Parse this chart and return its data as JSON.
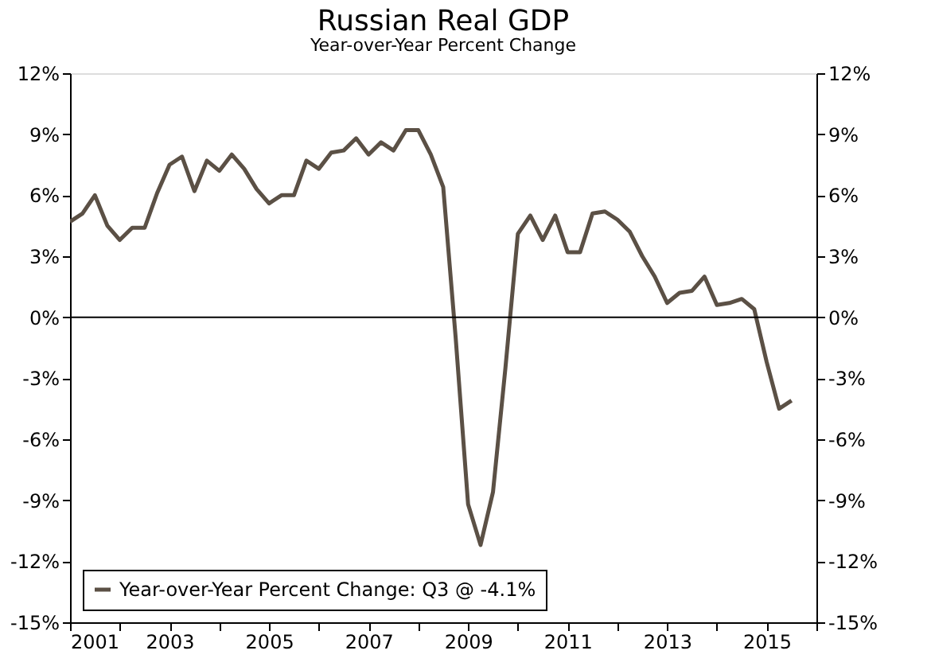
{
  "chart_data": {
    "type": "line",
    "title": "Russian Real GDP",
    "subtitle": "Year-over-Year Percent Change",
    "x": [
      2001,
      2001.25,
      2001.5,
      2001.75,
      2002,
      2002.25,
      2002.5,
      2002.75,
      2003,
      2003.25,
      2003.5,
      2003.75,
      2004,
      2004.25,
      2004.5,
      2004.75,
      2005,
      2005.25,
      2005.5,
      2005.75,
      2006,
      2006.25,
      2006.5,
      2006.75,
      2007,
      2007.25,
      2007.5,
      2007.75,
      2008,
      2008.25,
      2008.5,
      2008.75,
      2009,
      2009.25,
      2009.5,
      2009.75,
      2010,
      2010.25,
      2010.5,
      2010.75,
      2011,
      2011.25,
      2011.5,
      2011.75,
      2012,
      2012.25,
      2012.5,
      2012.75,
      2013,
      2013.25,
      2013.5,
      2013.75,
      2014,
      2014.25,
      2014.5,
      2014.75,
      2015,
      2015.25,
      2015.5
    ],
    "series": [
      {
        "name": "Year-over-Year Percent Change: Q3 @ -4.1%",
        "color": "#5b5045",
        "values": [
          4.7,
          5.1,
          6.0,
          4.5,
          3.8,
          4.4,
          4.4,
          6.1,
          7.5,
          7.9,
          6.2,
          7.7,
          7.2,
          8.0,
          7.3,
          6.3,
          5.6,
          6.0,
          6.0,
          7.7,
          7.3,
          8.1,
          8.2,
          8.8,
          8.0,
          8.6,
          8.2,
          9.2,
          9.2,
          8.0,
          6.4,
          -1.0,
          -9.2,
          -11.2,
          -8.6,
          -2.5,
          4.1,
          5.0,
          3.8,
          5.0,
          3.2,
          3.2,
          5.1,
          5.2,
          4.8,
          4.2,
          3.0,
          2.0,
          0.7,
          1.2,
          1.3,
          2.0,
          0.6,
          0.7,
          0.9,
          0.4,
          -2.2,
          -4.5,
          -4.1
        ]
      }
    ],
    "xlim": [
      2001,
      2016
    ],
    "xticks": [
      2001,
      {
        "value": 2002,
        "label": null
      },
      2003,
      {
        "value": 2004,
        "label": null
      },
      2005,
      {
        "value": 2006,
        "label": null
      },
      2007,
      {
        "value": 2008,
        "label": null
      },
      2009,
      {
        "value": 2010,
        "label": null
      },
      2011,
      {
        "value": 2012,
        "label": null
      },
      2013,
      {
        "value": 2014,
        "label": null
      },
      2015,
      {
        "value": 2016,
        "label": null
      }
    ],
    "ylim": [
      -15,
      12
    ],
    "yticks": [
      {
        "value": -15,
        "label": "-15%"
      },
      {
        "value": -12,
        "label": "-12%"
      },
      {
        "value": -9,
        "label": "-9%"
      },
      {
        "value": -6,
        "label": "-6%"
      },
      {
        "value": -3,
        "label": "-3%"
      },
      {
        "value": 0,
        "label": "0%"
      },
      {
        "value": 3,
        "label": "3%"
      },
      {
        "value": 6,
        "label": "6%"
      },
      {
        "value": 9,
        "label": "9%"
      },
      {
        "value": 12,
        "label": "12%"
      }
    ],
    "y2lim": [
      -15,
      12
    ],
    "y2ticks": [
      {
        "value": -15,
        "label": "-15%"
      },
      {
        "value": -12,
        "label": "-12%"
      },
      {
        "value": -9,
        "label": "-9%"
      },
      {
        "value": -6,
        "label": "-6%"
      },
      {
        "value": -3,
        "label": "-3%"
      },
      {
        "value": 0,
        "label": "0%"
      },
      {
        "value": 3,
        "label": "3%"
      },
      {
        "value": 6,
        "label": "6%"
      },
      {
        "value": 9,
        "label": "9%"
      },
      {
        "value": 12,
        "label": "12%"
      }
    ],
    "ref_lines": [
      {
        "axis": "y",
        "value": 0,
        "color": "#000000"
      }
    ],
    "legend": "bottom left",
    "grid": false,
    "line_style": "solid",
    "marker": "none"
  }
}
